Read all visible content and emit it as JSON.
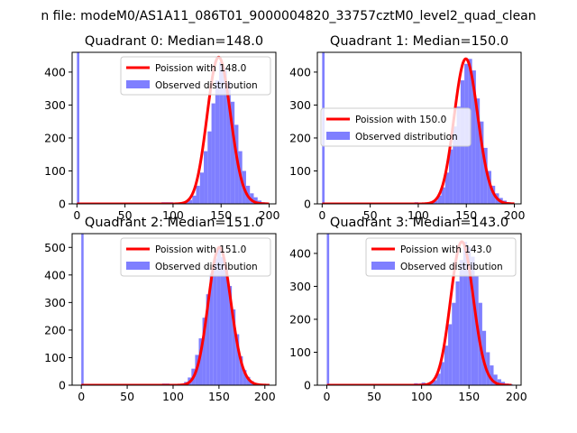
{
  "figure": {
    "suptitle": "n file: modeM0/AS1A11_086T01_9000004820_33757cztM0_level2_quad_clean"
  },
  "colors": {
    "poisson_line": "#ff0000",
    "histogram_fill": "#7f7fff",
    "axes_edge": "#000000",
    "legend_edge": "#cccccc"
  },
  "chart_data": [
    {
      "type": "histogram",
      "title": "Quadrant 0: Median=148.0",
      "xlim": [
        -5,
        207
      ],
      "ylim": [
        0,
        460
      ],
      "xticks": [
        0,
        50,
        100,
        150,
        200
      ],
      "yticks": [
        0,
        100,
        200,
        300,
        400
      ],
      "legend_position": "top-right",
      "legend": [
        "Poission with 148.0",
        "Observed distribution"
      ],
      "spike": {
        "x": 0,
        "height": 460
      },
      "hist_bins": [
        [
          88,
          5
        ],
        [
          92,
          5
        ],
        [
          96,
          5
        ],
        [
          100,
          3
        ],
        [
          104,
          2
        ],
        [
          108,
          4
        ],
        [
          112,
          6
        ],
        [
          116,
          12
        ],
        [
          120,
          25
        ],
        [
          124,
          55
        ],
        [
          128,
          95
        ],
        [
          132,
          160
        ],
        [
          136,
          220
        ],
        [
          140,
          305
        ],
        [
          144,
          375
        ],
        [
          148,
          430
        ],
        [
          152,
          410
        ],
        [
          156,
          370
        ],
        [
          160,
          310
        ],
        [
          164,
          240
        ],
        [
          168,
          160
        ],
        [
          172,
          100
        ],
        [
          176,
          55
        ],
        [
          180,
          32
        ],
        [
          184,
          20
        ],
        [
          188,
          10
        ],
        [
          192,
          5
        ],
        [
          196,
          3
        ]
      ],
      "poisson": {
        "lambda": 148.0,
        "scale": 445,
        "x_start": 0,
        "x_end": 200
      }
    },
    {
      "type": "histogram",
      "title": "Quadrant 1: Median=150.0",
      "xlim": [
        -5,
        207
      ],
      "ylim": [
        0,
        460
      ],
      "xticks": [
        0,
        50,
        100,
        150,
        200
      ],
      "yticks": [
        0,
        100,
        200,
        300,
        400
      ],
      "legend_position": "center-left",
      "legend": [
        "Poission with 150.0",
        "Observed distribution"
      ],
      "spike": {
        "x": 0,
        "height": 460
      },
      "hist_bins": [
        [
          92,
          4
        ],
        [
          96,
          5
        ],
        [
          100,
          3
        ],
        [
          104,
          2
        ],
        [
          108,
          3
        ],
        [
          112,
          6
        ],
        [
          116,
          10
        ],
        [
          120,
          25
        ],
        [
          124,
          50
        ],
        [
          128,
          95
        ],
        [
          132,
          165
        ],
        [
          136,
          235
        ],
        [
          140,
          295
        ],
        [
          144,
          375
        ],
        [
          148,
          425
        ],
        [
          152,
          440
        ],
        [
          156,
          405
        ],
        [
          160,
          320
        ],
        [
          164,
          250
        ],
        [
          168,
          170
        ],
        [
          172,
          100
        ],
        [
          176,
          55
        ],
        [
          180,
          32
        ],
        [
          184,
          18
        ],
        [
          188,
          10
        ],
        [
          192,
          5
        ],
        [
          196,
          3
        ]
      ],
      "poisson": {
        "lambda": 150.0,
        "scale": 440,
        "x_start": 0,
        "x_end": 200
      }
    },
    {
      "type": "histogram",
      "title": "Quadrant 2: Median=151.0",
      "xlim": [
        -10,
        212
      ],
      "ylim": [
        0,
        550
      ],
      "xticks": [
        0,
        50,
        100,
        150,
        200
      ],
      "yticks": [
        0,
        100,
        200,
        300,
        400,
        500
      ],
      "legend_position": "top-right",
      "legend": [
        "Poission with 151.0",
        "Observed distribution"
      ],
      "spike": {
        "x": 0,
        "height": 550
      },
      "hist_bins": [
        [
          88,
          6
        ],
        [
          92,
          6
        ],
        [
          96,
          4
        ],
        [
          100,
          3
        ],
        [
          104,
          2
        ],
        [
          108,
          5
        ],
        [
          112,
          12
        ],
        [
          116,
          28
        ],
        [
          120,
          60
        ],
        [
          124,
          110
        ],
        [
          128,
          170
        ],
        [
          132,
          245
        ],
        [
          136,
          330
        ],
        [
          140,
          405
        ],
        [
          144,
          460
        ],
        [
          148,
          500
        ],
        [
          152,
          465
        ],
        [
          156,
          420
        ],
        [
          160,
          360
        ],
        [
          164,
          275
        ],
        [
          168,
          185
        ],
        [
          172,
          105
        ],
        [
          176,
          55
        ],
        [
          180,
          30
        ],
        [
          184,
          15
        ],
        [
          188,
          8
        ],
        [
          192,
          4
        ],
        [
          196,
          3
        ]
      ],
      "poisson": {
        "lambda": 151.0,
        "scale": 500,
        "x_start": 0,
        "x_end": 205
      }
    },
    {
      "type": "histogram",
      "title": "Quadrant 3: Median=143.0",
      "xlim": [
        -10,
        205
      ],
      "ylim": [
        0,
        460
      ],
      "xticks": [
        0,
        50,
        100,
        150,
        200
      ],
      "yticks": [
        0,
        100,
        200,
        300,
        400
      ],
      "legend_position": "top-right",
      "legend": [
        "Poission with 143.0",
        "Observed distribution"
      ],
      "spike": {
        "x": 0,
        "height": 460
      },
      "hist_bins": [
        [
          92,
          6
        ],
        [
          96,
          5
        ],
        [
          100,
          8
        ],
        [
          104,
          3
        ],
        [
          108,
          6
        ],
        [
          112,
          15
        ],
        [
          116,
          35
        ],
        [
          120,
          70
        ],
        [
          124,
          120
        ],
        [
          128,
          185
        ],
        [
          132,
          250
        ],
        [
          136,
          315
        ],
        [
          140,
          380
        ],
        [
          144,
          435
        ],
        [
          148,
          420
        ],
        [
          152,
          390
        ],
        [
          156,
          330
        ],
        [
          160,
          250
        ],
        [
          164,
          165
        ],
        [
          168,
          100
        ],
        [
          172,
          60
        ],
        [
          176,
          32
        ],
        [
          180,
          18
        ],
        [
          184,
          10
        ],
        [
          188,
          5
        ],
        [
          192,
          3
        ]
      ],
      "poisson": {
        "lambda": 143.0,
        "scale": 435,
        "x_start": 0,
        "x_end": 195
      }
    }
  ]
}
